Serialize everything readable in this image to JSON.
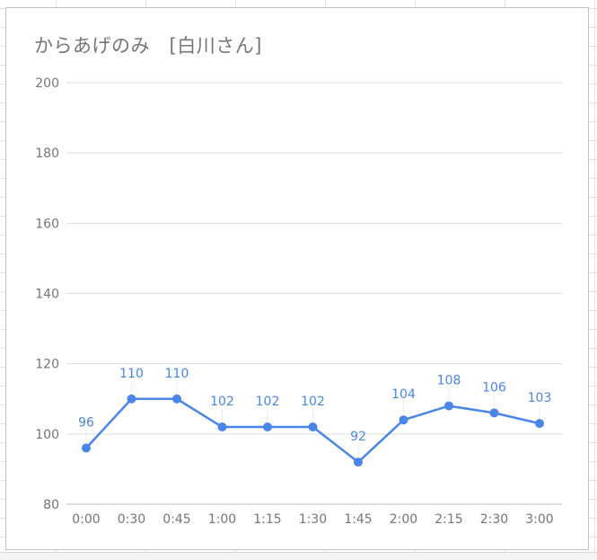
{
  "chart_data": {
    "type": "line",
    "title": "からあげのみ　[白川さん]",
    "categories": [
      "0:00",
      "0:30",
      "0:45",
      "1:00",
      "1:15",
      "1:30",
      "1:45",
      "2:00",
      "2:15",
      "2:30",
      "3:00"
    ],
    "series": [
      {
        "values": [
          96,
          110,
          110,
          102,
          102,
          102,
          92,
          104,
          108,
          106,
          103
        ],
        "color": "#4a86e8"
      }
    ],
    "yticks": [
      80,
      100,
      120,
      140,
      160,
      180,
      200
    ],
    "ylim": [
      80,
      200
    ],
    "grid": true,
    "data_labels": true,
    "legend": "none"
  }
}
